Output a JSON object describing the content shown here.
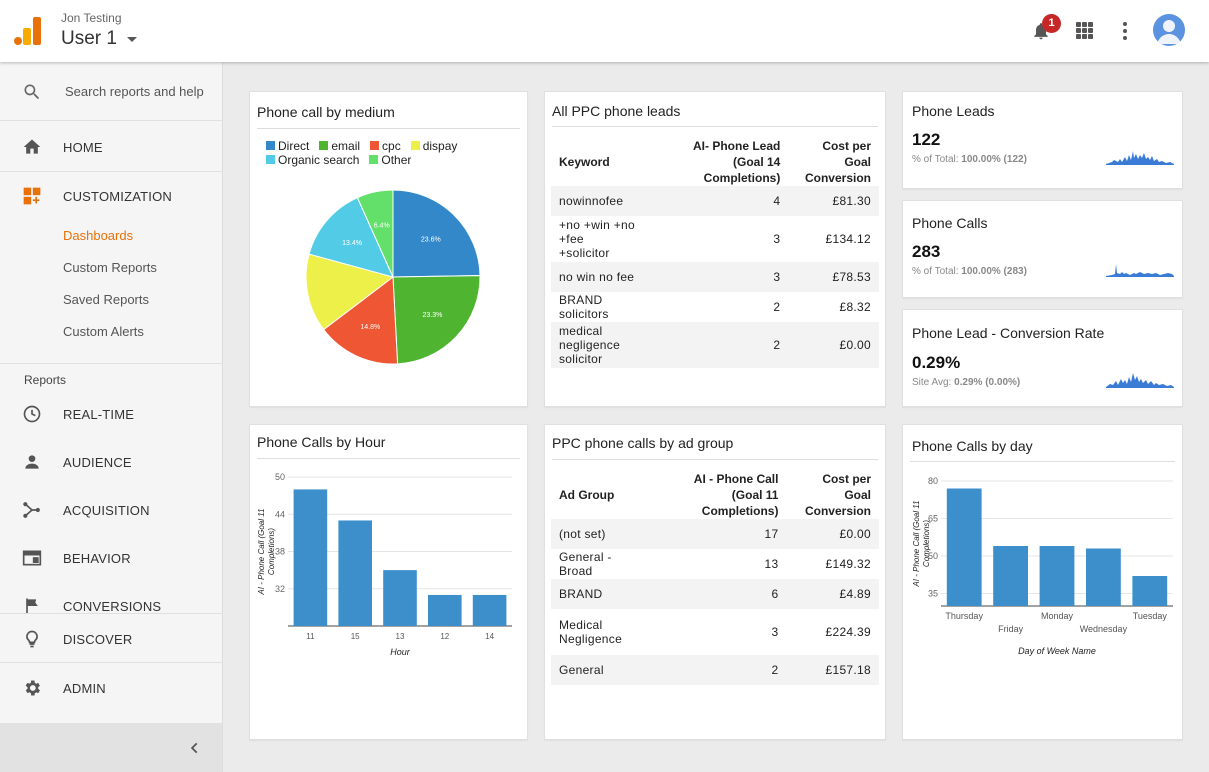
{
  "header": {
    "account_sub": "Jon Testing",
    "account_name": "User 1",
    "notification_count": "1"
  },
  "sidebar": {
    "search_placeholder": "Search reports and help",
    "home": "HOME",
    "customization": "CUSTOMIZATION",
    "customization_items": [
      "Dashboards",
      "Custom Reports",
      "Saved Reports",
      "Custom Alerts"
    ],
    "reports_heading": "Reports",
    "realtime": "REAL-TIME",
    "audience": "AUDIENCE",
    "acquisition": "ACQUISITION",
    "behavior": "BEHAVIOR",
    "conversions": "CONVERSIONS",
    "discover": "DISCOVER",
    "admin": "ADMIN"
  },
  "colors": {
    "accent": "#e8710a",
    "bar": "#3c8fcb",
    "sparkline": "#3a7bd5"
  },
  "widgets": {
    "pie": {
      "title": "Phone call by medium",
      "legend": [
        {
          "label": "Direct",
          "color": "#3388c9"
        },
        {
          "label": "email",
          "color": "#4fb531"
        },
        {
          "label": "cpc",
          "color": "#ee5634"
        },
        {
          "label": "dispay",
          "color": "#eef04a"
        },
        {
          "label": "Organic search",
          "color": "#52cce6"
        },
        {
          "label": "Other",
          "color": "#62e06a"
        }
      ]
    },
    "leads_table": {
      "title": "All PPC phone leads",
      "headers": [
        "Keyword",
        "AI- Phone Lead\n(Goal 14 Completions)",
        "Cost per Goal\nConversion"
      ],
      "rows": [
        [
          "nowinnofee",
          "4",
          "£81.30"
        ],
        [
          "+no +win +no +fee\n+solicitor",
          "3",
          "£134.12"
        ],
        [
          "no win no fee",
          "3",
          "£78.53"
        ],
        [
          "BRAND solicitors",
          "2",
          "£8.32"
        ],
        [
          "medical negligence\nsolicitor",
          "2",
          "£0.00"
        ]
      ]
    },
    "kpi_leads": {
      "title": "Phone Leads",
      "value": "122",
      "sub_label": "% of Total:",
      "sub_value": "100.00% (122)"
    },
    "kpi_calls": {
      "title": "Phone Calls",
      "value": "283",
      "sub_label": "% of Total:",
      "sub_value": "100.00% (283)"
    },
    "kpi_rate": {
      "title": "Phone Lead - Conversion Rate",
      "value": "0.29%",
      "sub_label": "Site Avg:",
      "sub_value": "0.29% (0.00%)"
    },
    "adgroup_table": {
      "title": "PPC phone calls by ad group",
      "headers": [
        "Ad Group",
        "AI - Phone Call\n(Goal 11 Completions)",
        "Cost per Goal\nConversion"
      ],
      "rows": [
        [
          "(not set)",
          "17",
          "£0.00"
        ],
        [
          "General - Broad",
          "13",
          "£149.32"
        ],
        [
          "BRAND",
          "6",
          "£4.89"
        ],
        [
          "Medical\nNegligence",
          "3",
          "£224.39"
        ],
        [
          "General",
          "2",
          "£157.18"
        ]
      ]
    },
    "hour_chart": {
      "title": "Phone Calls by Hour"
    },
    "day_chart": {
      "title": "Phone Calls by day"
    }
  },
  "chart_data": [
    {
      "type": "pie",
      "title": "Phone call by medium",
      "categories": [
        "Direct",
        "email",
        "cpc",
        "dispay",
        "Organic search",
        "Other"
      ],
      "values": [
        23.6,
        23.3,
        14.8,
        13.9,
        13.4,
        6.4
      ],
      "labels": [
        "23.6%",
        "23.3%",
        "14.8%",
        "",
        "13.4%",
        "6.4%"
      ],
      "legend": "top"
    },
    {
      "type": "bar",
      "title": "Phone Calls by Hour",
      "categories": [
        "11",
        "15",
        "13",
        "12",
        "14"
      ],
      "values": [
        48,
        43,
        35,
        31,
        31
      ],
      "xlabel": "Hour",
      "ylabel": "AI - Phone Call (Goal 11 Completions)",
      "yticks": [
        32,
        38,
        44,
        50
      ],
      "ylim": [
        26,
        50
      ]
    },
    {
      "type": "bar",
      "title": "Phone Calls by day",
      "categories": [
        "Thursday",
        "Friday",
        "Monday",
        "Wednesday",
        "Tuesday"
      ],
      "values": [
        77,
        54,
        54,
        53,
        42
      ],
      "xlabel": "Day of Week Name",
      "ylabel": "AI - Phone Call (Goal 11 Completions)",
      "yticks": [
        35,
        50,
        65,
        80
      ],
      "ylim": [
        30,
        80
      ]
    }
  ]
}
